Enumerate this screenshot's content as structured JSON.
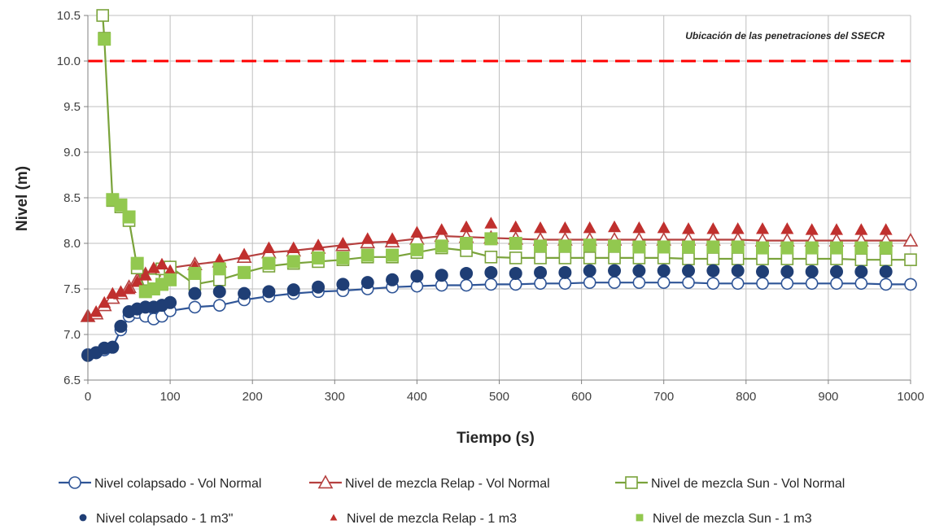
{
  "chart_data": {
    "type": "line",
    "title": "",
    "xlabel": "Tiempo (s)",
    "ylabel": "Nivel (m)",
    "xlim": [
      0,
      1000
    ],
    "ylim": [
      6.5,
      10.5
    ],
    "x_ticks": [
      0,
      100,
      200,
      300,
      400,
      500,
      600,
      700,
      800,
      900,
      1000
    ],
    "y_ticks": [
      "6.5",
      "7.0",
      "7.5",
      "8.0",
      "8.5",
      "9.0",
      "9.5",
      "10.0",
      "10.5"
    ],
    "grid": true,
    "legend_position": "bottom",
    "reference_line": {
      "y": 10.0,
      "color": "#ff0000",
      "style": "dashed"
    },
    "annotation": "Ubicación de las penetraciones del SSECR",
    "series": [
      {
        "name": "Nivel colapsado - Vol Normal",
        "color": "#2f5597",
        "marker": "circle-open",
        "line": true,
        "x": [
          0,
          10,
          20,
          30,
          40,
          50,
          60,
          70,
          80,
          90,
          100,
          130,
          160,
          190,
          220,
          250,
          280,
          310,
          340,
          370,
          400,
          430,
          460,
          490,
          520,
          550,
          580,
          610,
          640,
          670,
          700,
          730,
          760,
          790,
          820,
          850,
          880,
          910,
          940,
          970,
          1000
        ],
        "y": [
          6.78,
          6.8,
          6.83,
          6.86,
          7.05,
          7.2,
          7.24,
          7.2,
          7.17,
          7.2,
          7.26,
          7.3,
          7.32,
          7.38,
          7.42,
          7.45,
          7.47,
          7.48,
          7.5,
          7.52,
          7.53,
          7.54,
          7.54,
          7.55,
          7.55,
          7.56,
          7.56,
          7.57,
          7.57,
          7.57,
          7.57,
          7.57,
          7.56,
          7.56,
          7.56,
          7.56,
          7.56,
          7.56,
          7.56,
          7.55,
          7.55
        ]
      },
      {
        "name": "Nivel de mezcla Relap - Vol Normal",
        "color": "#b5403f",
        "marker": "triangle-open",
        "line": true,
        "x": [
          0,
          10,
          20,
          30,
          40,
          50,
          60,
          70,
          80,
          90,
          100,
          130,
          160,
          190,
          220,
          250,
          280,
          310,
          340,
          370,
          400,
          430,
          460,
          490,
          520,
          550,
          580,
          610,
          640,
          670,
          700,
          730,
          760,
          790,
          820,
          850,
          880,
          910,
          940,
          970,
          1000
        ],
        "y": [
          7.2,
          7.23,
          7.32,
          7.4,
          7.45,
          7.52,
          7.6,
          7.66,
          7.7,
          7.72,
          7.73,
          7.77,
          7.8,
          7.85,
          7.9,
          7.92,
          7.95,
          7.98,
          8.01,
          8.02,
          8.05,
          8.08,
          8.07,
          8.06,
          8.05,
          8.04,
          8.04,
          8.04,
          8.04,
          8.04,
          8.04,
          8.04,
          8.04,
          8.04,
          8.03,
          8.03,
          8.03,
          8.03,
          8.03,
          8.03,
          8.03
        ]
      },
      {
        "name": "Nivel de mezcla Sun - Vol Normal",
        "color": "#7aa33b",
        "marker": "square-open",
        "line": true,
        "x": [
          18,
          20,
          30,
          40,
          50,
          60,
          70,
          80,
          90,
          100,
          130,
          160,
          190,
          220,
          250,
          280,
          310,
          340,
          370,
          400,
          430,
          460,
          490,
          520,
          550,
          580,
          610,
          640,
          670,
          700,
          730,
          760,
          790,
          820,
          850,
          880,
          910,
          940,
          970,
          1000
        ],
        "y": [
          10.5,
          10.25,
          8.47,
          8.4,
          8.25,
          7.73,
          7.48,
          7.6,
          7.72,
          7.74,
          7.55,
          7.6,
          7.68,
          7.75,
          7.78,
          7.8,
          7.82,
          7.85,
          7.85,
          7.9,
          7.95,
          7.92,
          7.85,
          7.84,
          7.84,
          7.84,
          7.84,
          7.84,
          7.84,
          7.84,
          7.83,
          7.83,
          7.83,
          7.83,
          7.83,
          7.83,
          7.83,
          7.82,
          7.82,
          7.82
        ]
      },
      {
        "name": "Nivel colapsado - 1 m3\"",
        "color": "#1f3e75",
        "marker": "circle-filled",
        "line": false,
        "x": [
          0,
          10,
          20,
          30,
          40,
          50,
          60,
          70,
          80,
          90,
          100,
          130,
          160,
          190,
          220,
          250,
          280,
          310,
          340,
          370,
          400,
          430,
          460,
          490,
          520,
          550,
          580,
          610,
          640,
          670,
          700,
          730,
          760,
          790,
          820,
          850,
          880,
          910,
          940,
          970
        ],
        "y": [
          6.77,
          6.8,
          6.85,
          6.86,
          7.09,
          7.25,
          7.28,
          7.3,
          7.3,
          7.32,
          7.35,
          7.45,
          7.47,
          7.45,
          7.47,
          7.49,
          7.52,
          7.55,
          7.57,
          7.6,
          7.64,
          7.65,
          7.67,
          7.68,
          7.67,
          7.68,
          7.68,
          7.7,
          7.7,
          7.7,
          7.7,
          7.7,
          7.7,
          7.7,
          7.69,
          7.69,
          7.69,
          7.69,
          7.69,
          7.69
        ]
      },
      {
        "name": "Nivel de mezcla Relap - 1 m3",
        "color": "#c0302e",
        "marker": "triangle-filled",
        "line": false,
        "x": [
          0,
          10,
          20,
          30,
          40,
          50,
          60,
          70,
          80,
          90,
          100,
          130,
          160,
          190,
          220,
          250,
          280,
          310,
          340,
          370,
          400,
          430,
          460,
          490,
          520,
          550,
          580,
          610,
          640,
          670,
          700,
          730,
          760,
          790,
          820,
          850,
          880,
          910,
          940,
          970
        ],
        "y": [
          7.2,
          7.25,
          7.35,
          7.45,
          7.47,
          7.5,
          7.58,
          7.65,
          7.73,
          7.77,
          7.7,
          7.75,
          7.82,
          7.88,
          7.95,
          7.95,
          7.98,
          8.0,
          8.05,
          8.05,
          8.12,
          8.15,
          8.18,
          8.22,
          8.18,
          8.17,
          8.17,
          8.17,
          8.18,
          8.17,
          8.17,
          8.16,
          8.16,
          8.16,
          8.16,
          8.16,
          8.15,
          8.15,
          8.15,
          8.15
        ]
      },
      {
        "name": "Nivel de mezcla Sun - 1 m3",
        "color": "#92c84f",
        "marker": "square-filled",
        "line": false,
        "x": [
          20,
          30,
          40,
          50,
          60,
          70,
          80,
          90,
          100,
          130,
          160,
          190,
          220,
          250,
          280,
          310,
          340,
          370,
          400,
          430,
          460,
          490,
          520,
          550,
          580,
          610,
          640,
          670,
          700,
          730,
          760,
          790,
          820,
          850,
          880,
          910,
          940,
          970
        ],
        "y": [
          10.24,
          8.48,
          8.42,
          8.29,
          7.78,
          7.47,
          7.5,
          7.55,
          7.6,
          7.67,
          7.72,
          7.68,
          7.78,
          7.8,
          7.84,
          7.84,
          7.87,
          7.87,
          7.93,
          7.97,
          8.0,
          8.05,
          8.0,
          7.97,
          7.97,
          7.98,
          7.97,
          7.96,
          7.96,
          7.96,
          7.96,
          7.96,
          7.95,
          7.95,
          7.95,
          7.95,
          7.95,
          7.95
        ]
      }
    ]
  }
}
